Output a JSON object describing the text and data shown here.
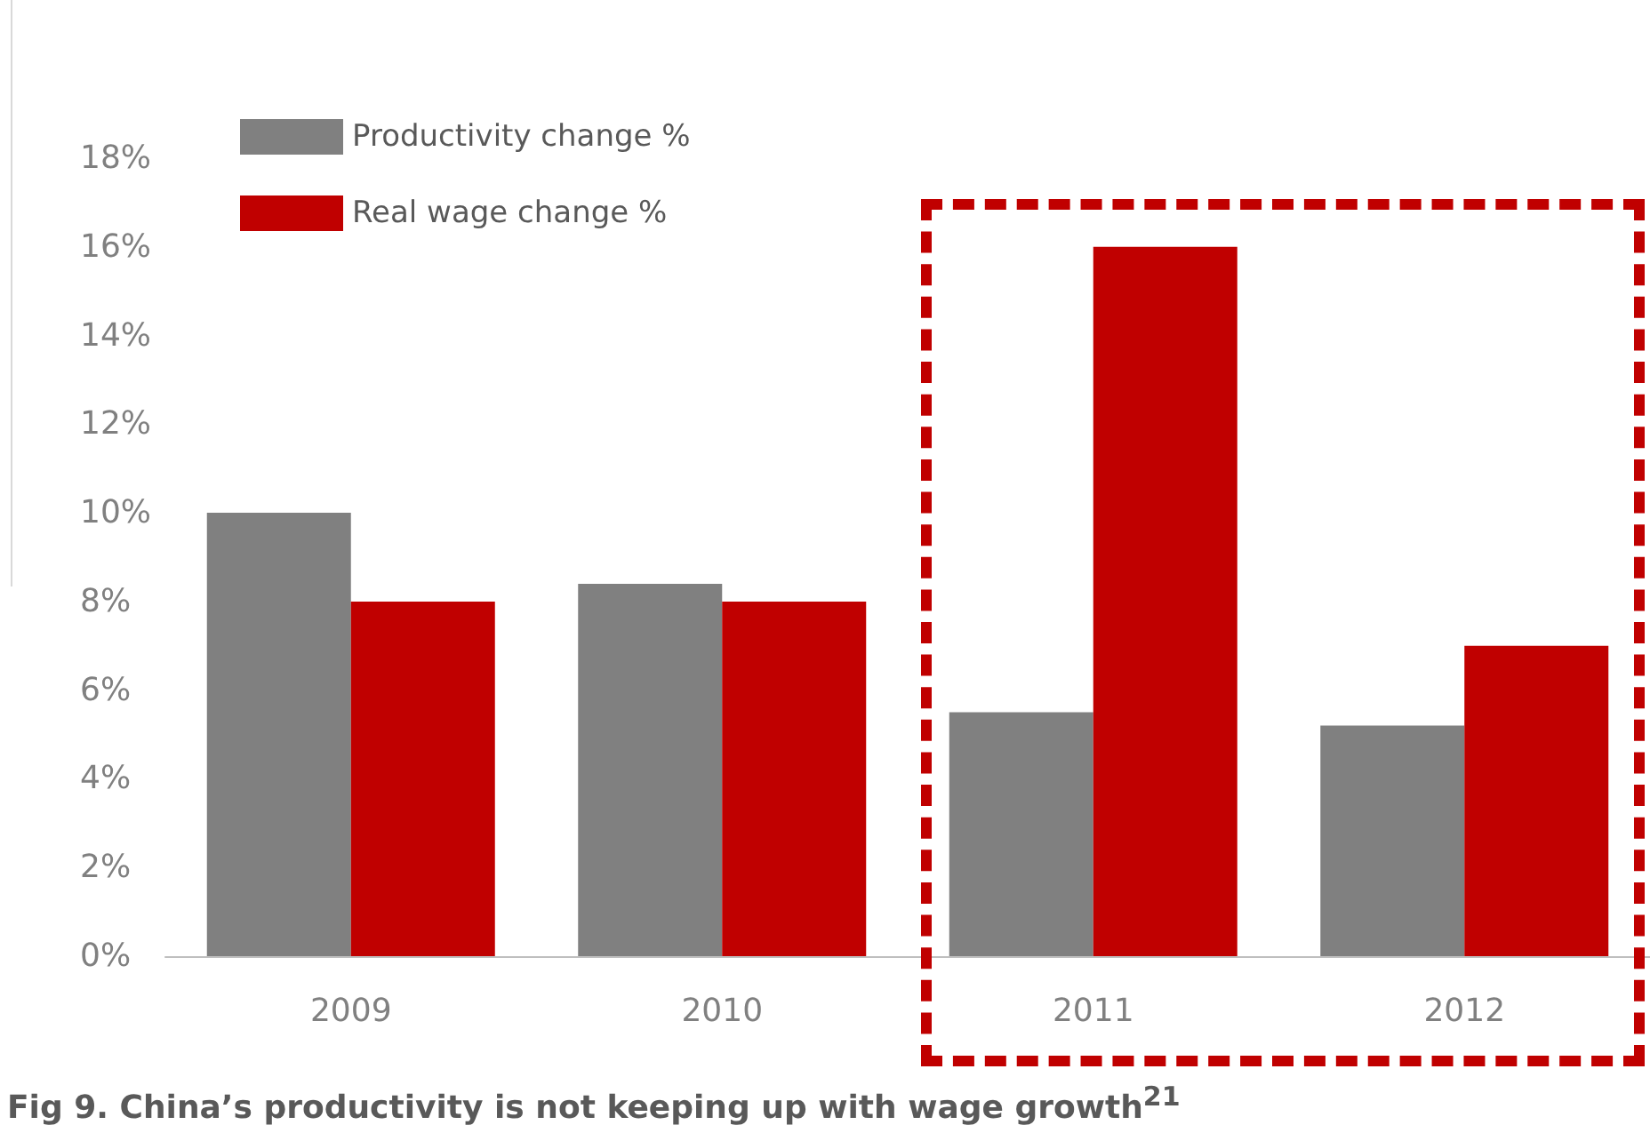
{
  "chart_data": {
    "type": "bar",
    "title": "Fig 9. China’s productivity is not keeping up with wage growth$^{21}$",
    "categories": [
      "2009",
      "2010",
      "2011",
      "2012"
    ],
    "series": [
      {
        "name": "Productivity change %",
        "color": "#808080",
        "values": [
          10,
          8.4,
          5.5,
          5.2
        ]
      },
      {
        "name": "Real wage change %",
        "color": "#c00000",
        "values": [
          8,
          8,
          16,
          7
        ]
      }
    ],
    "ylim": [
      0,
      18
    ],
    "yticks": [
      {
        "value": 0,
        "label": "0%"
      },
      {
        "value": 2,
        "label": "2%"
      },
      {
        "value": 4,
        "label": "4%"
      },
      {
        "value": 6,
        "label": "6%"
      },
      {
        "value": 8,
        "label": "8%"
      },
      {
        "value": 10,
        "label": "10%"
      },
      {
        "value": 12,
        "label": "12%"
      },
      {
        "value": 14,
        "label": "14%"
      },
      {
        "value": 16,
        "label": "16%"
      },
      {
        "value": 18,
        "label": "18%"
      }
    ],
    "grid": false,
    "legend": "top left"
  }
}
